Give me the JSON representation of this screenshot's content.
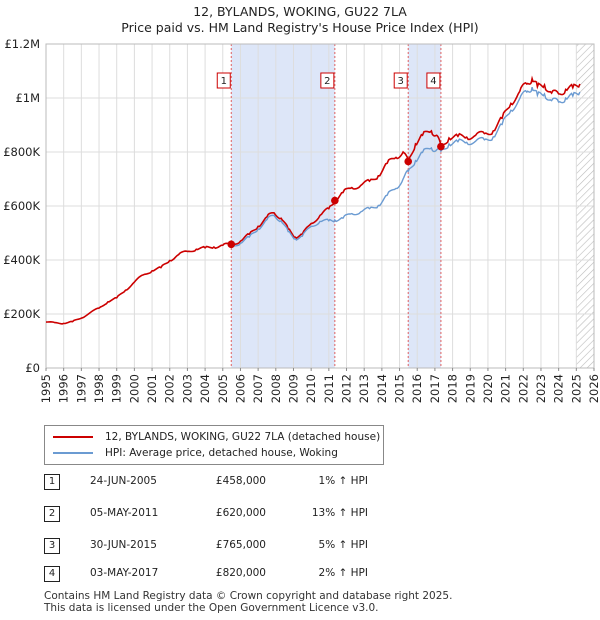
{
  "title": {
    "line1": "12, BYLANDS, WOKING, GU22 7LA",
    "line2": "Price paid vs. HM Land Registry's House Price Index (HPI)"
  },
  "colors": {
    "price_line": "#cc0000",
    "hpi_line": "#6b9bd2",
    "highlight": "#dde6f8",
    "marker_border": "#cc0000",
    "grid": "#dddddd"
  },
  "legend": {
    "price_label": "12, BYLANDS, WOKING, GU22 7LA (detached house)",
    "hpi_label": "HPI: Average price, detached house, Woking"
  },
  "sales": [
    {
      "num": "1",
      "date": "24-JUN-2005",
      "price": "£458,000",
      "hpi": "1% ↑ HPI"
    },
    {
      "num": "2",
      "date": "05-MAY-2011",
      "price": "£620,000",
      "hpi": "13% ↑ HPI"
    },
    {
      "num": "3",
      "date": "30-JUN-2015",
      "price": "£765,000",
      "hpi": "5% ↑ HPI"
    },
    {
      "num": "4",
      "date": "03-MAY-2017",
      "price": "£820,000",
      "hpi": "2% ↑ HPI"
    }
  ],
  "footer": {
    "line1": "Contains HM Land Registry data © Crown copyright and database right 2025.",
    "line2": "This data is licensed under the Open Government Licence v3.0."
  },
  "chart_data": {
    "type": "line",
    "title": "12, BYLANDS, WOKING, GU22 7LA — Price paid vs. HM Land Registry's House Price Index (HPI)",
    "xlabel": "",
    "ylabel": "",
    "xlim": [
      1995,
      2026
    ],
    "ylim": [
      0,
      1200000
    ],
    "grid": true,
    "x_ticks": [
      "1995",
      "1996",
      "1997",
      "1998",
      "1999",
      "2000",
      "2001",
      "2002",
      "2003",
      "2004",
      "2005",
      "2006",
      "2007",
      "2008",
      "2009",
      "2010",
      "2011",
      "2012",
      "2013",
      "2014",
      "2015",
      "2016",
      "2017",
      "2018",
      "2019",
      "2020",
      "2021",
      "2022",
      "2023",
      "2024",
      "2025",
      "2026"
    ],
    "y_ticks": [
      {
        "value": 0,
        "label": "£0"
      },
      {
        "value": 200000,
        "label": "£200K"
      },
      {
        "value": 400000,
        "label": "£400K"
      },
      {
        "value": 600000,
        "label": "£600K"
      },
      {
        "value": 800000,
        "label": "£800K"
      },
      {
        "value": 1000000,
        "label": "£1M"
      },
      {
        "value": 1200000,
        "label": "£1.2M"
      }
    ],
    "highlight_ranges": [
      [
        2005.48,
        2011.34
      ],
      [
        2015.49,
        2017.34
      ]
    ],
    "future_hatch_from": 2025.0,
    "series": [
      {
        "name": "12, BYLANDS, WOKING, GU22 7LA (detached house)",
        "color": "#cc0000",
        "x": [
          1995.0,
          1995.5,
          1996.0,
          1996.5,
          1997.0,
          1997.5,
          1998.0,
          1998.5,
          1999.0,
          1999.5,
          2000.0,
          2000.5,
          2001.0,
          2001.5,
          2002.0,
          2002.5,
          2003.0,
          2003.5,
          2004.0,
          2004.5,
          2005.0,
          2005.48,
          2006.0,
          2006.5,
          2007.0,
          2007.5,
          2007.9,
          2008.3,
          2008.7,
          2009.1,
          2009.5,
          2010.0,
          2010.5,
          2011.0,
          2011.34,
          2011.8,
          2012.3,
          2012.8,
          2013.3,
          2013.8,
          2014.3,
          2014.8,
          2015.2,
          2015.49,
          2015.9,
          2016.3,
          2016.8,
          2017.1,
          2017.34,
          2017.8,
          2018.3,
          2018.8,
          2019.3,
          2019.8,
          2020.3,
          2020.8,
          2021.3,
          2021.8,
          2022.2,
          2022.5,
          2022.8,
          2023.2,
          2023.6,
          2024.0,
          2024.4,
          2024.8,
          2025.2
        ],
        "values": [
          170000,
          168000,
          165000,
          172000,
          185000,
          205000,
          222000,
          245000,
          260000,
          288000,
          318000,
          345000,
          360000,
          372000,
          398000,
          420000,
          432000,
          440000,
          445000,
          448000,
          455000,
          458000,
          470000,
          495000,
          525000,
          560000,
          575000,
          555000,
          515000,
          485000,
          495000,
          535000,
          565000,
          590000,
          620000,
          650000,
          668000,
          676000,
          692000,
          712000,
          758000,
          780000,
          800000,
          765000,
          830000,
          862000,
          878000,
          862000,
          820000,
          852000,
          858000,
          855000,
          862000,
          868000,
          878000,
          925000,
          980000,
          1025000,
          1052000,
          1072000,
          1042000,
          1048000,
          1018000,
          1015000,
          1032000,
          1038000,
          1052000
        ]
      },
      {
        "name": "HPI: Average price, detached house, Woking",
        "color": "#6b9bd2",
        "x": [
          2005.48,
          2006.0,
          2006.5,
          2007.0,
          2007.5,
          2007.9,
          2008.3,
          2008.7,
          2009.1,
          2009.5,
          2010.0,
          2010.5,
          2011.0,
          2011.34,
          2011.8,
          2012.3,
          2012.8,
          2013.3,
          2013.8,
          2014.3,
          2014.8,
          2015.2,
          2015.49,
          2015.9,
          2016.3,
          2016.8,
          2017.1,
          2017.34,
          2017.8,
          2018.3,
          2018.8,
          2019.3,
          2019.8,
          2020.3,
          2020.8,
          2021.3,
          2021.8,
          2022.2,
          2022.5,
          2022.8,
          2023.2,
          2023.6,
          2024.0,
          2024.4,
          2024.8,
          2025.2
        ],
        "values": [
          453000,
          462000,
          485000,
          515000,
          550000,
          565000,
          545000,
          505000,
          478000,
          488000,
          525000,
          543000,
          545000,
          548000,
          555000,
          572000,
          578000,
          590000,
          602000,
          640000,
          665000,
          700000,
          728000,
          768000,
          798000,
          815000,
          808000,
          803000,
          830000,
          838000,
          836000,
          840000,
          845000,
          856000,
          902000,
          955000,
          998000,
          1022000,
          1040000,
          1010000,
          1015000,
          990000,
          985000,
          1000000,
          1007000,
          1022000
        ]
      }
    ],
    "sale_markers": [
      {
        "label": "1",
        "x": 2005.48,
        "y": 458000
      },
      {
        "label": "2",
        "x": 2011.34,
        "y": 620000
      },
      {
        "label": "3",
        "x": 2015.49,
        "y": 765000
      },
      {
        "label": "4",
        "x": 2017.34,
        "y": 820000
      }
    ]
  }
}
